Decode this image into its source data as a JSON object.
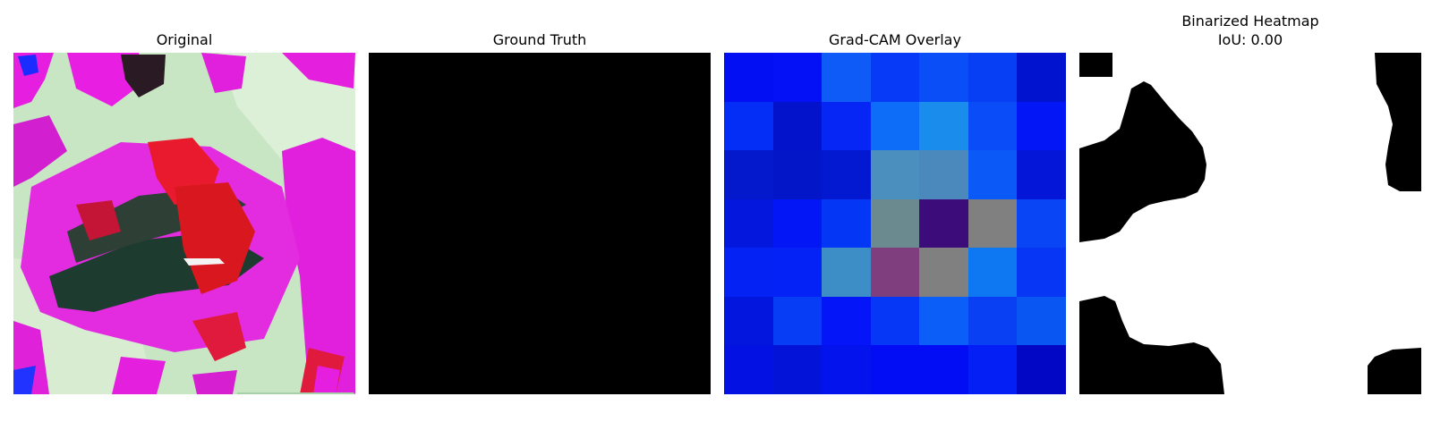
{
  "panels": {
    "original": {
      "title": "Original"
    },
    "ground_truth": {
      "title": "Ground Truth"
    },
    "gradcam": {
      "title": "Grad-CAM Overlay",
      "grid_rows": 7,
      "grid_cols": 7,
      "cells": [
        [
          "#020ff3",
          "#0410f6",
          "#0f5bf8",
          "#073af6",
          "#0a4ef8",
          "#073ff5",
          "#0213cf"
        ],
        [
          "#042ef5",
          "#0313cc",
          "#0626f5",
          "#0e6df8",
          "#1a8cec",
          "#0a4cf7",
          "#0316f5"
        ],
        [
          "#0418cc",
          "#0317c8",
          "#0318d1",
          "#4a8fbe",
          "#4b89bd",
          "#0b5af7",
          "#0417d9"
        ],
        [
          "#0317dd",
          "#0316f6",
          "#0437f5",
          "#6a8a90",
          "#3b0c7a",
          "#808080",
          "#0a45f5"
        ],
        [
          "#0322f3",
          "#0422f6",
          "#3d8ec6",
          "#7f3f7f",
          "#808080",
          "#0d78f1",
          "#0737f5"
        ],
        [
          "#0316de",
          "#073ef5",
          "#0415f7",
          "#0637f6",
          "#0b5ef8",
          "#0940f3",
          "#0a56f2"
        ],
        [
          "#0311e3",
          "#0313d8",
          "#0213ed",
          "#020df5",
          "#020cf5",
          "#041ff6",
          "#0107c4"
        ]
      ]
    },
    "binarized": {
      "title_line1": "Binarized Heatmap",
      "title_line2": "IoU: 0.00"
    }
  }
}
